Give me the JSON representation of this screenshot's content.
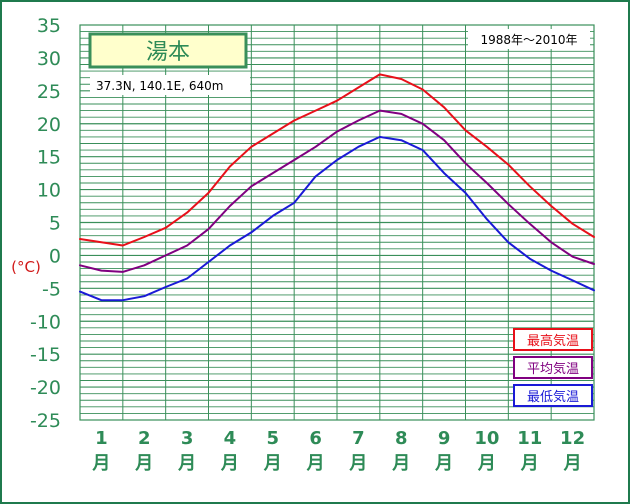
{
  "chart_data": {
    "type": "line",
    "station": "湯本",
    "location": "37.3N,  140.1E,  640m",
    "period": "1988年〜2010年",
    "ylabel": "(°C)",
    "ylim": [
      -25,
      35
    ],
    "yticks": [
      35,
      30,
      25,
      20,
      15,
      10,
      5,
      0,
      -5,
      -10,
      -15,
      -20,
      -25
    ],
    "xlim": [
      0,
      12
    ],
    "months": [
      {
        "num": "1",
        "unit": "月"
      },
      {
        "num": "2",
        "unit": "月"
      },
      {
        "num": "3",
        "unit": "月"
      },
      {
        "num": "4",
        "unit": "月"
      },
      {
        "num": "5",
        "unit": "月"
      },
      {
        "num": "6",
        "unit": "月"
      },
      {
        "num": "7",
        "unit": "月"
      },
      {
        "num": "8",
        "unit": "月"
      },
      {
        "num": "9",
        "unit": "月"
      },
      {
        "num": "10",
        "unit": "月"
      },
      {
        "num": "11",
        "unit": "月"
      },
      {
        "num": "12",
        "unit": "月"
      }
    ],
    "grid": true,
    "legend_position": "bottom-right",
    "x": [
      0,
      0.5,
      1,
      1.5,
      2,
      2.5,
      3,
      3.5,
      4,
      4.5,
      5,
      5.5,
      6,
      6.5,
      7,
      7.5,
      8,
      8.5,
      9,
      9.5,
      10,
      10.5,
      11,
      11.5,
      12
    ],
    "series": [
      {
        "name": "最高気温",
        "color": "#e8101a",
        "values": [
          2.5,
          2.0,
          1.5,
          2.8,
          4.2,
          6.5,
          9.5,
          13.5,
          16.5,
          18.5,
          20.5,
          22.0,
          23.5,
          25.5,
          27.5,
          26.8,
          25.2,
          22.5,
          19.0,
          16.5,
          13.8,
          10.5,
          7.5,
          4.8,
          2.8
        ]
      },
      {
        "name": "平均気温",
        "color": "#800080",
        "values": [
          -1.5,
          -2.3,
          -2.5,
          -1.5,
          0.0,
          1.5,
          4.0,
          7.5,
          10.5,
          12.5,
          14.5,
          16.5,
          18.8,
          20.5,
          22.0,
          21.5,
          20.0,
          17.5,
          14.0,
          11.0,
          7.8,
          4.8,
          2.0,
          -0.2,
          -1.3
        ]
      },
      {
        "name": "最低気温",
        "color": "#1a1ad6",
        "values": [
          -5.5,
          -6.8,
          -6.8,
          -6.2,
          -4.8,
          -3.5,
          -1.0,
          1.5,
          3.5,
          6.0,
          8.0,
          12.0,
          14.5,
          16.5,
          18.0,
          17.5,
          16.0,
          12.5,
          9.5,
          5.5,
          2.0,
          -0.5,
          -2.3,
          -3.8,
          -5.3
        ]
      }
    ]
  }
}
